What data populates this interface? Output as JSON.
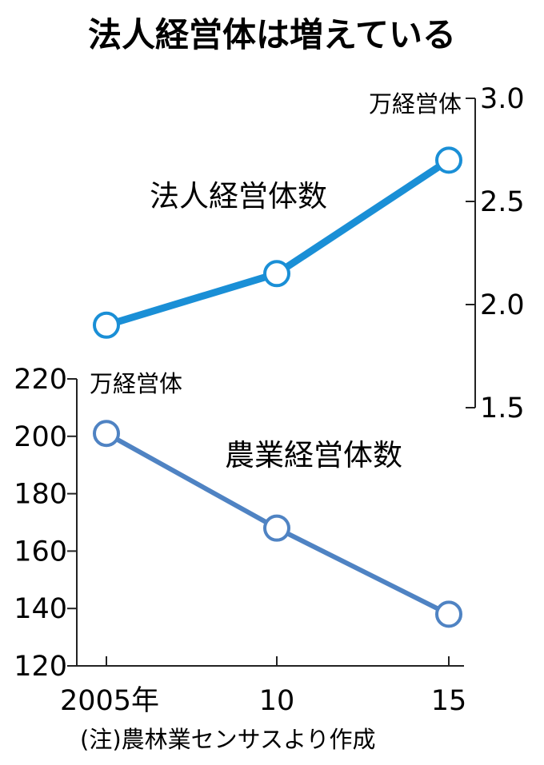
{
  "title": "法人経営体は増えている",
  "note": "(注)農林業センサスより作成",
  "chart_data": [
    {
      "type": "line",
      "name": "法人経営体数",
      "unit": "万経営体",
      "axis_side": "right",
      "ylim": [
        1.5,
        3.0
      ],
      "yticks": [
        "3.0",
        "2.5",
        "2.0",
        "1.5"
      ],
      "ytick_values": [
        3.0,
        2.5,
        2.0,
        1.5
      ],
      "x": [
        2005,
        2010,
        2015
      ],
      "values": [
        1.9,
        2.15,
        2.7
      ],
      "color": "#1a8fd6"
    },
    {
      "type": "line",
      "name": "農業経営体数",
      "unit": "万経営体",
      "axis_side": "left",
      "ylim": [
        120,
        220
      ],
      "yticks": [
        "220",
        "200",
        "180",
        "160",
        "140",
        "120"
      ],
      "ytick_values": [
        220,
        200,
        180,
        160,
        140,
        120
      ],
      "x": [
        2005,
        2010,
        2015
      ],
      "values": [
        201,
        168,
        138
      ],
      "color": "#4f83c3"
    }
  ],
  "xticks": [
    "2005年",
    "10",
    "15"
  ]
}
